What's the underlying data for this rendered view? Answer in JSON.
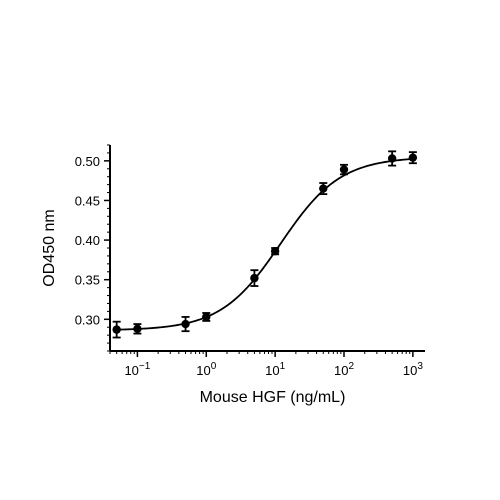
{
  "chart_data": {
    "type": "scatter",
    "title": "",
    "xlabel": "Mouse HGF (ng/mL)",
    "ylabel": "OD450 nm",
    "x_scale": "log",
    "xlim": [
      0.04,
      1500
    ],
    "ylim": [
      0.26,
      0.52
    ],
    "grid": false,
    "legend": "none",
    "colors": {
      "marker": "#000000",
      "curve": "#000000",
      "axis": "#000000"
    },
    "x_tick_labels": [
      {
        "value": 0.1,
        "base": "10",
        "exp": "−1"
      },
      {
        "value": 1,
        "base": "10",
        "exp": "0"
      },
      {
        "value": 10,
        "base": "10",
        "exp": "1"
      },
      {
        "value": 100,
        "base": "10",
        "exp": "2"
      },
      {
        "value": 1000,
        "base": "10",
        "exp": "3"
      }
    ],
    "y_ticks": [
      {
        "value": 0.3,
        "label": "0.30"
      },
      {
        "value": 0.35,
        "label": "0.35"
      },
      {
        "value": 0.4,
        "label": "0.40"
      },
      {
        "value": 0.45,
        "label": "0.45"
      },
      {
        "value": 0.5,
        "label": "0.50"
      }
    ],
    "series": [
      {
        "x": [
          0.05,
          0.1,
          0.5,
          1,
          5,
          10,
          50,
          100,
          500,
          1000
        ],
        "y": [
          0.287,
          0.288,
          0.294,
          0.303,
          0.352,
          0.386,
          0.465,
          0.489,
          0.503,
          0.504
        ],
        "error": [
          0.01,
          0.006,
          0.009,
          0.005,
          0.01,
          0.004,
          0.007,
          0.006,
          0.009,
          0.007
        ]
      }
    ],
    "fit_curve": {
      "model": "4PL",
      "bottom": 0.286,
      "top": 0.505,
      "ec50": 12,
      "hill": 1.0
    }
  }
}
